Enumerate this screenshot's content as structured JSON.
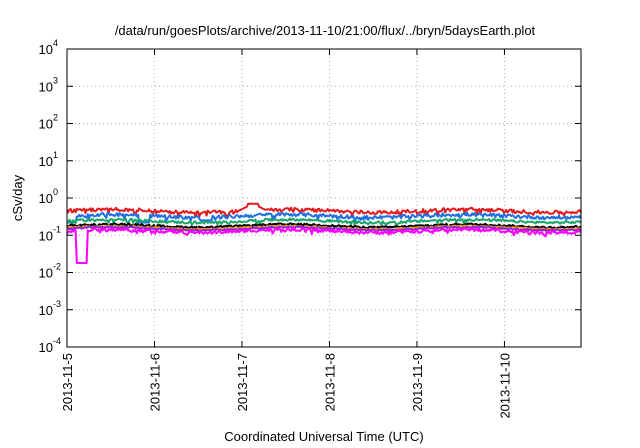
{
  "chart_data": {
    "type": "line",
    "title": "/data/run/goesPlots/archive/2013-11-10/21:00/flux/../bryn/5daysEarth.plot",
    "xlabel": "Coordinated Universal Time (UTC)",
    "ylabel": "cSv/day",
    "yscale": "log",
    "ylim": [
      0.0001,
      10000
    ],
    "xlim": [
      "2013-11-05",
      "2013-11-10T21:00"
    ],
    "grid": true,
    "x_ticks": [
      "2013-11-5",
      "2013-11-6",
      "2013-11-7",
      "2013-11-8",
      "2013-11-9",
      "2013-11-10"
    ],
    "y_ticks": [
      {
        "base": "10",
        "exp": "-4"
      },
      {
        "base": "10",
        "exp": "-3"
      },
      {
        "base": "10",
        "exp": "-2"
      },
      {
        "base": "10",
        "exp": "-1"
      },
      {
        "base": "10",
        "exp": "0"
      },
      {
        "base": "10",
        "exp": "1"
      },
      {
        "base": "10",
        "exp": "2"
      },
      {
        "base": "10",
        "exp": "3"
      },
      {
        "base": "10",
        "exp": "4"
      }
    ],
    "series": [
      {
        "color": "#e41a1c",
        "level": 0.45,
        "var": 0.12,
        "features": [
          {
            "x": "2013-11-07T03:00",
            "y": 0.7
          }
        ]
      },
      {
        "color": "#1f6fe5",
        "level": 0.33,
        "var": 0.12,
        "features": [
          {
            "x": "2013-11-05T01:00",
            "y": 0.22
          },
          {
            "x": "2013-11-05T21:00",
            "y": 0.22
          },
          {
            "x": "2013-11-06T14:00",
            "y": 0.25
          }
        ]
      },
      {
        "color": "#1aa66a",
        "level": 0.24,
        "var": 0.08,
        "features": []
      },
      {
        "color": "#000000",
        "level": 0.18,
        "var": 0.06,
        "features": []
      },
      {
        "color": "#ff9900",
        "level": 0.16,
        "var": 0.05,
        "features": []
      },
      {
        "color": "#8a2be2",
        "level": 0.15,
        "var": 0.05,
        "features": []
      },
      {
        "color": "#ff00ff",
        "level": 0.13,
        "var": 0.1,
        "features": [
          {
            "x": "2013-11-05T04:00",
            "y": 0.018
          }
        ]
      }
    ]
  }
}
